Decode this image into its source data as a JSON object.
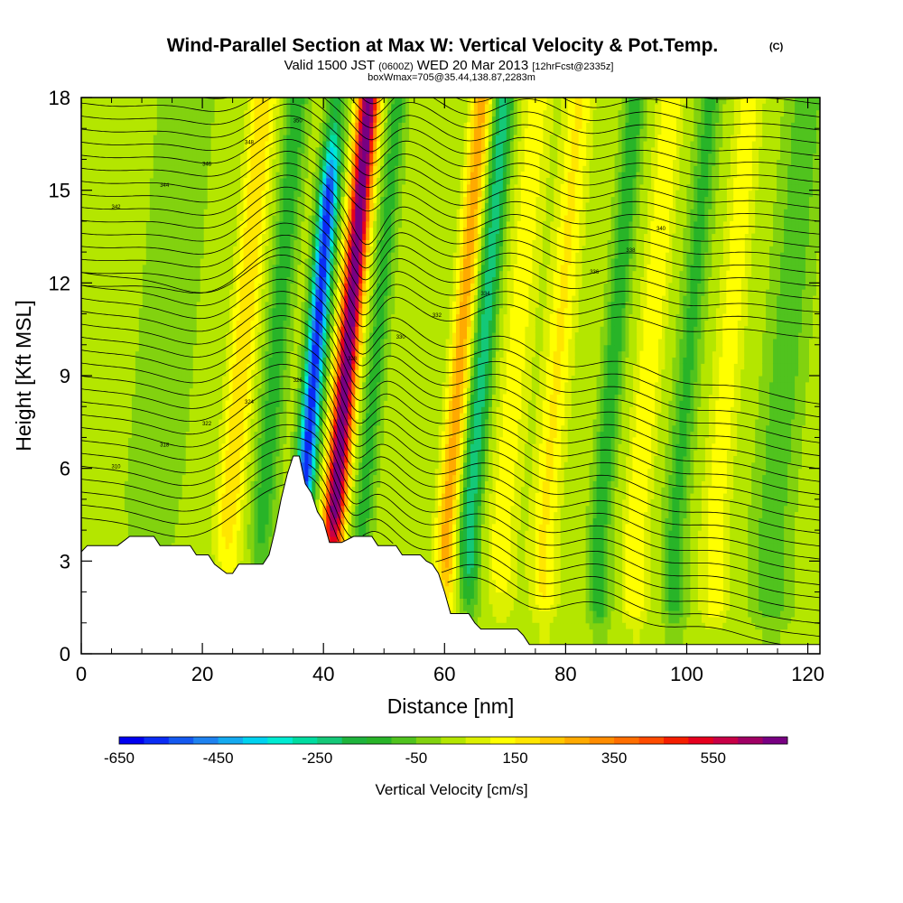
{
  "titles": {
    "main": "Wind-Parallel Section at Max W: Vertical Velocity & Pot.Temp.",
    "copyright": "(C)",
    "valid_prefix": "Valid 1500 JST",
    "valid_utc": "(0600Z)",
    "valid_date": "WED 20 Mar 2013",
    "forecast": "[12hrFcst@2335z]",
    "box_info": "boxWmax=705@35.44,138.87,2283m"
  },
  "chart_data": {
    "type": "heatmap",
    "xlabel": "Distance [nm]",
    "ylabel": "Height [Kft MSL]",
    "xlim": [
      0,
      122
    ],
    "ylim": [
      0,
      18
    ],
    "x_ticks": [
      "0",
      "20",
      "40",
      "60",
      "80",
      "100",
      "120"
    ],
    "y_ticks": [
      "0",
      "3",
      "6",
      "9",
      "12",
      "15",
      "18"
    ],
    "colorbar": {
      "title": "Vertical Velocity [cm/s]",
      "labels": [
        "-650",
        "-450",
        "-250",
        "-50",
        "150",
        "350",
        "550"
      ],
      "levels": [
        -650,
        -600,
        -550,
        -500,
        -450,
        -400,
        -350,
        -300,
        -250,
        -200,
        -150,
        -100,
        -50,
        0,
        50,
        100,
        150,
        200,
        250,
        300,
        350,
        400,
        450,
        500,
        550,
        600,
        650,
        700
      ],
      "colors": [
        "#0000f0",
        "#0a2cf5",
        "#1459f0",
        "#1e82f0",
        "#14aaf0",
        "#00d2f0",
        "#00ebd2",
        "#00dca0",
        "#14c878",
        "#1eb43c",
        "#28b428",
        "#50c31e",
        "#82d20f",
        "#b4e600",
        "#dcf000",
        "#ffff00",
        "#ffe600",
        "#ffc800",
        "#ffaa00",
        "#ff8c00",
        "#ff6e00",
        "#ff4b00",
        "#f51e00",
        "#e6001e",
        "#c80046",
        "#a00064",
        "#780082"
      ]
    },
    "terrain_kft": [
      [
        0,
        3.3
      ],
      [
        1,
        3.5
      ],
      [
        6,
        3.5
      ],
      [
        8,
        3.8
      ],
      [
        12,
        3.8
      ],
      [
        13,
        3.5
      ],
      [
        18,
        3.5
      ],
      [
        19,
        3.2
      ],
      [
        21,
        3.2
      ],
      [
        22,
        2.9
      ],
      [
        24,
        2.6
      ],
      [
        25,
        2.6
      ],
      [
        26,
        2.9
      ],
      [
        30,
        2.9
      ],
      [
        31,
        3.2
      ],
      [
        32,
        4.0
      ],
      [
        33,
        5.0
      ],
      [
        34,
        5.8
      ],
      [
        35,
        6.4
      ],
      [
        36,
        6.4
      ],
      [
        37,
        5.5
      ],
      [
        38,
        5.2
      ],
      [
        39,
        4.6
      ],
      [
        40,
        4.3
      ],
      [
        41,
        3.6
      ],
      [
        43,
        3.6
      ],
      [
        45,
        3.8
      ],
      [
        48,
        3.8
      ],
      [
        49,
        3.5
      ],
      [
        52,
        3.5
      ],
      [
        53,
        3.2
      ],
      [
        56,
        3.2
      ],
      [
        57,
        3.0
      ],
      [
        58,
        2.9
      ],
      [
        59,
        2.6
      ],
      [
        60,
        2.0
      ],
      [
        61,
        1.3
      ],
      [
        64,
        1.3
      ],
      [
        65,
        1.0
      ],
      [
        66,
        0.8
      ],
      [
        72,
        0.8
      ],
      [
        73,
        0.6
      ],
      [
        74,
        0.3
      ],
      [
        122,
        0.3
      ]
    ],
    "theta_labels": [
      "310",
      "318",
      "322",
      "324",
      "326",
      "328",
      "330",
      "332",
      "334",
      "336",
      "338",
      "340",
      "342",
      "344",
      "346",
      "348",
      "350"
    ]
  }
}
